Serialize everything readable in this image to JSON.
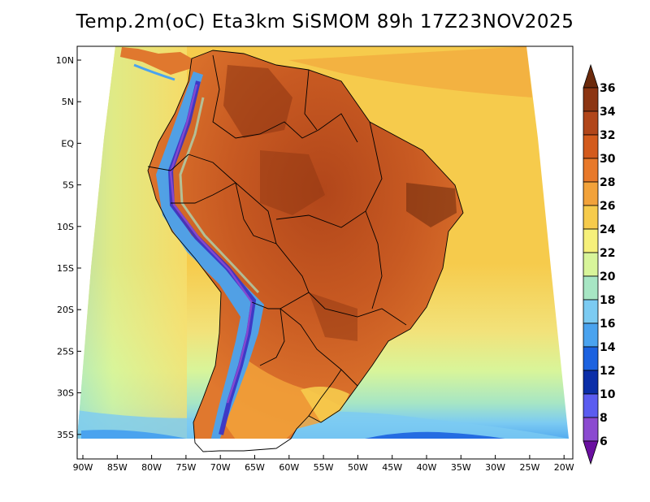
{
  "title": "Temp.2m(oC) Eta3km SiSMOM 89h 17Z23NOV2025",
  "map": {
    "lat_labels": [
      "10N",
      "5N",
      "EQ",
      "5S",
      "10S",
      "15S",
      "20S",
      "25S",
      "30S",
      "35S"
    ],
    "lon_labels": [
      "90W",
      "85W",
      "80W",
      "75W",
      "70W",
      "65W",
      "60W",
      "55W",
      "50W",
      "45W",
      "40W",
      "35W",
      "30W",
      "25W",
      "20W"
    ],
    "region": "South America (Brazil)"
  },
  "colorbar": {
    "labels": [
      "36",
      "34",
      "32",
      "30",
      "28",
      "26",
      "24",
      "22",
      "20",
      "18",
      "16",
      "14",
      "12",
      "10",
      "8",
      "6"
    ],
    "colors": [
      "#6b2a0c",
      "#8c3512",
      "#b1461a",
      "#d35b1d",
      "#e8792a",
      "#f2a23a",
      "#f6cb4c",
      "#f6f07a",
      "#d8f59a",
      "#a7e6c4",
      "#7ccbf2",
      "#4aa3ef",
      "#1c62e0",
      "#0b2ea8",
      "#5b5cf0",
      "#8b4ad0",
      "#6a0fa0"
    ]
  }
}
